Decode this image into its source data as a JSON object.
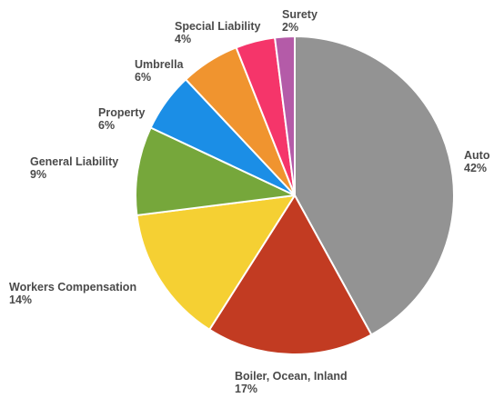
{
  "chart_data": {
    "type": "pie",
    "start_angle_deg": 0,
    "direction": "clockwise",
    "slices": [
      {
        "label": "Auto",
        "pct_label": "42%",
        "value": 42,
        "color": "#939393"
      },
      {
        "label": "Boiler, Ocean, Inland",
        "pct_label": "17%",
        "value": 17,
        "color": "#c23b22"
      },
      {
        "label": "Workers Compensation",
        "pct_label": "14%",
        "value": 14,
        "color": "#f5d033"
      },
      {
        "label": "General Liability",
        "pct_label": "9%",
        "value": 9,
        "color": "#76a73b"
      },
      {
        "label": "Property",
        "pct_label": "6%",
        "value": 6,
        "color": "#1b8ee6"
      },
      {
        "label": "Umbrella",
        "pct_label": "6%",
        "value": 6,
        "color": "#f0942f"
      },
      {
        "label": "Special Liability",
        "pct_label": "4%",
        "value": 4,
        "color": "#f5356a"
      },
      {
        "label": "Surety",
        "pct_label": "2%",
        "value": 2,
        "color": "#b45ba8"
      }
    ],
    "legend": "none",
    "label_text_color": "#4a4a4a"
  }
}
